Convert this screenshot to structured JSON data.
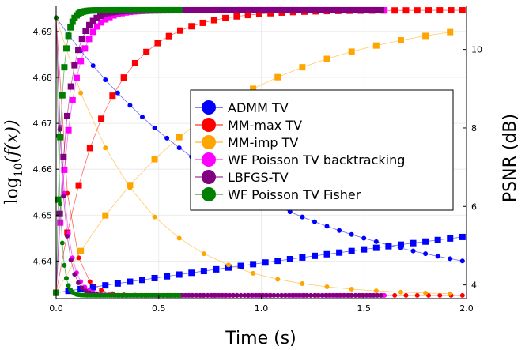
{
  "chart_data": {
    "type": "line",
    "xlabel": "Time (s)",
    "ylabel_left": "log10(f(x))",
    "ylabel_left_parts": {
      "base": "log",
      "sub": "10",
      "arg": "(f(x))"
    },
    "ylabel_right": "PSNR (dB)",
    "xlim": [
      0,
      2.0
    ],
    "ylim_left": [
      4.6318,
      4.6955
    ],
    "ylim_right": [
      3.65,
      11.1
    ],
    "xticks": [
      0.0,
      0.5,
      1.0,
      1.5,
      2.0
    ],
    "xtick_labels": [
      "0.0",
      "0.5",
      "1.0",
      "1.5",
      "2.0"
    ],
    "yticks_left": [
      4.64,
      4.65,
      4.66,
      4.67,
      4.68,
      4.69
    ],
    "ytick_labels_left": [
      "4.64",
      "4.65",
      "4.66",
      "4.67",
      "4.68",
      "4.69"
    ],
    "yticks_right": [
      4,
      6,
      8,
      10
    ],
    "ytick_labels_right": [
      "4",
      "6",
      "8",
      "10"
    ],
    "legend_position": "center-right",
    "grid": true,
    "series": [
      {
        "name": "ADMM TV",
        "color": "#0000ff",
        "obj_start": 4.693,
        "obj_end": 4.6325,
        "obj_tau": 0.95,
        "psnr_start": 3.8,
        "psnr_end": 11.0,
        "psnr_tau": 9.0,
        "t_end": 2.0,
        "step": 0.06
      },
      {
        "name": "MM-max TV",
        "color": "#ff0000",
        "obj_start": 4.693,
        "obj_end": 4.6325,
        "obj_tau": 0.055,
        "psnr_start": 3.8,
        "psnr_end": 11.0,
        "psnr_tau": 0.23,
        "t_end": 2.0,
        "step": 0.055
      },
      {
        "name": "MM-imp TV",
        "color": "#ffa500",
        "obj_start": 4.693,
        "obj_end": 4.6325,
        "obj_tau": 0.38,
        "psnr_start": 3.8,
        "psnr_end": 11.0,
        "psnr_tau": 0.75,
        "t_end": 2.0,
        "step": 0.12
      },
      {
        "name": "WF Poisson TV backtracking",
        "color": "#ff00ff",
        "obj_start": 4.693,
        "obj_end": 4.6325,
        "obj_tau": 0.04,
        "psnr_start": 3.8,
        "psnr_end": 11.0,
        "psnr_tau": 0.07,
        "t_end": 1.6,
        "step": 0.02
      },
      {
        "name": "LBFGS-TV",
        "color": "#800080",
        "obj_start": 4.693,
        "obj_end": 4.6325,
        "obj_tau": 0.035,
        "psnr_start": 3.8,
        "psnr_end": 11.0,
        "psnr_tau": 0.055,
        "t_end": 1.6,
        "step": 0.018
      },
      {
        "name": "WF Poisson TV Fisher",
        "color": "#008000",
        "obj_start": 4.693,
        "obj_end": 4.6325,
        "obj_tau": 0.018,
        "psnr_start": 3.8,
        "psnr_end": 11.0,
        "psnr_tau": 0.025,
        "t_end": 0.6,
        "step": 0.01
      }
    ]
  }
}
